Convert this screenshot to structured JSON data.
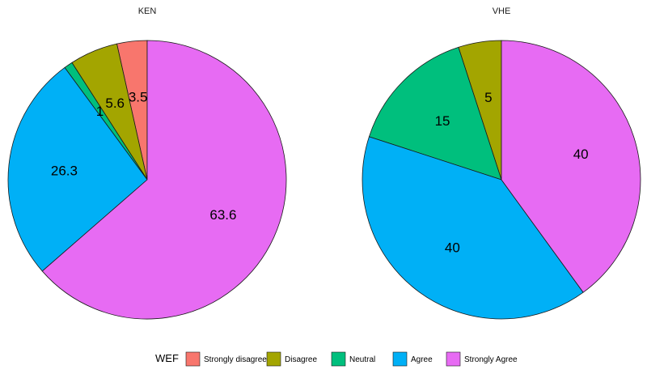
{
  "chart_data": {
    "type": "pie",
    "categories": [
      "Strongly disagree",
      "Disagree",
      "Neutral",
      "Agree",
      "Strongly Agree"
    ],
    "colors": [
      "#F8766D",
      "#A3A500",
      "#00BF7D",
      "#00B0F6",
      "#E76BF3"
    ],
    "panels": [
      {
        "title": "KEN",
        "values": [
          3.5,
          5.6,
          1,
          26.3,
          63.6
        ],
        "labels": [
          "3.5",
          "5.6",
          "1",
          "26.3",
          "63.6"
        ]
      },
      {
        "title": "VHE",
        "values": [
          0,
          5,
          15,
          40,
          40
        ],
        "labels": [
          "",
          "5",
          "15",
          "40",
          "40"
        ]
      }
    ],
    "legend": {
      "title": "WEF",
      "position": "bottom",
      "entries": [
        "Strongly disagree",
        "Disagree",
        "Neutral",
        "Agree",
        "Strongly Agree"
      ]
    }
  }
}
